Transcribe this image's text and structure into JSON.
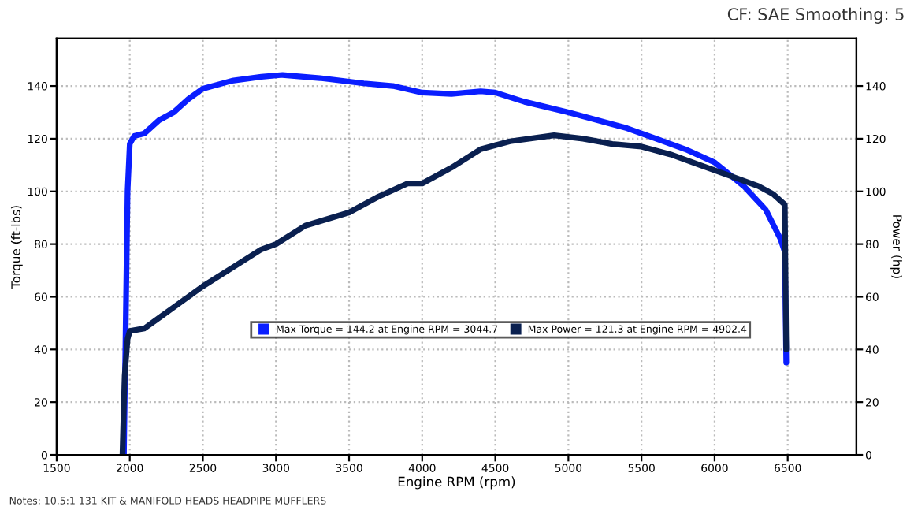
{
  "chart_data": {
    "type": "line",
    "xlabel": "Engine RPM (rpm)",
    "ylabel": "Torque (ft-lbs)",
    "y2label": "Power (hp)",
    "annotations": [
      "CF: SAE Smoothing: 5",
      "Notes: 10.5:1 131 KIT & MANIFOLD HEADS HEADPIPE MUFFLERS"
    ],
    "xlim": [
      1500,
      6970
    ],
    "xticks": [
      1500,
      2000,
      2500,
      3000,
      3500,
      4000,
      4500,
      5000,
      5500,
      6000,
      6500
    ],
    "ylim": [
      0,
      158
    ],
    "yticks": [
      0,
      20,
      40,
      60,
      80,
      100,
      120,
      140
    ],
    "y2lim": [
      0,
      158
    ],
    "y2ticks": [
      0,
      20,
      40,
      60,
      80,
      100,
      120,
      140
    ],
    "grid": true,
    "legend": "bottom",
    "line_style": "solid",
    "series": [
      {
        "name": "Max Torque = 144.2 at Engine RPM = 3044.7",
        "color": "#0a1eff",
        "x": [
          1960,
          1970,
          1985,
          2000,
          2030,
          2100,
          2200,
          2300,
          2400,
          2500,
          2700,
          2900,
          3045,
          3300,
          3600,
          3800,
          4000,
          4200,
          4400,
          4500,
          4700,
          5000,
          5200,
          5400,
          5600,
          5800,
          6000,
          6200,
          6350,
          6450,
          6480,
          6490
        ],
        "values": [
          0,
          40,
          100,
          118,
          121,
          122,
          127,
          130,
          135,
          139,
          142,
          143.5,
          144.2,
          143,
          141,
          140,
          137.5,
          137,
          138,
          137.5,
          134,
          130,
          127,
          124,
          120,
          116,
          111,
          102,
          93,
          82,
          77,
          35
        ]
      },
      {
        "name": "Max Power = 121.3 at Engine RPM = 4902.4",
        "color": "#0a2050",
        "axis": "y2",
        "x": [
          1950,
          1965,
          1985,
          2000,
          2100,
          2200,
          2300,
          2500,
          2700,
          2900,
          3000,
          3200,
          3500,
          3700,
          3900,
          4000,
          4200,
          4400,
          4600,
          4902,
          5100,
          5300,
          5500,
          5700,
          5900,
          6100,
          6300,
          6400,
          6480,
          6490
        ],
        "values": [
          0,
          30,
          44,
          47,
          48,
          52,
          56,
          64,
          71,
          78,
          80,
          87,
          92,
          98,
          103,
          103,
          109,
          116,
          119,
          121.3,
          120,
          118,
          117,
          114,
          110,
          106,
          102,
          99,
          95,
          40
        ]
      }
    ]
  }
}
